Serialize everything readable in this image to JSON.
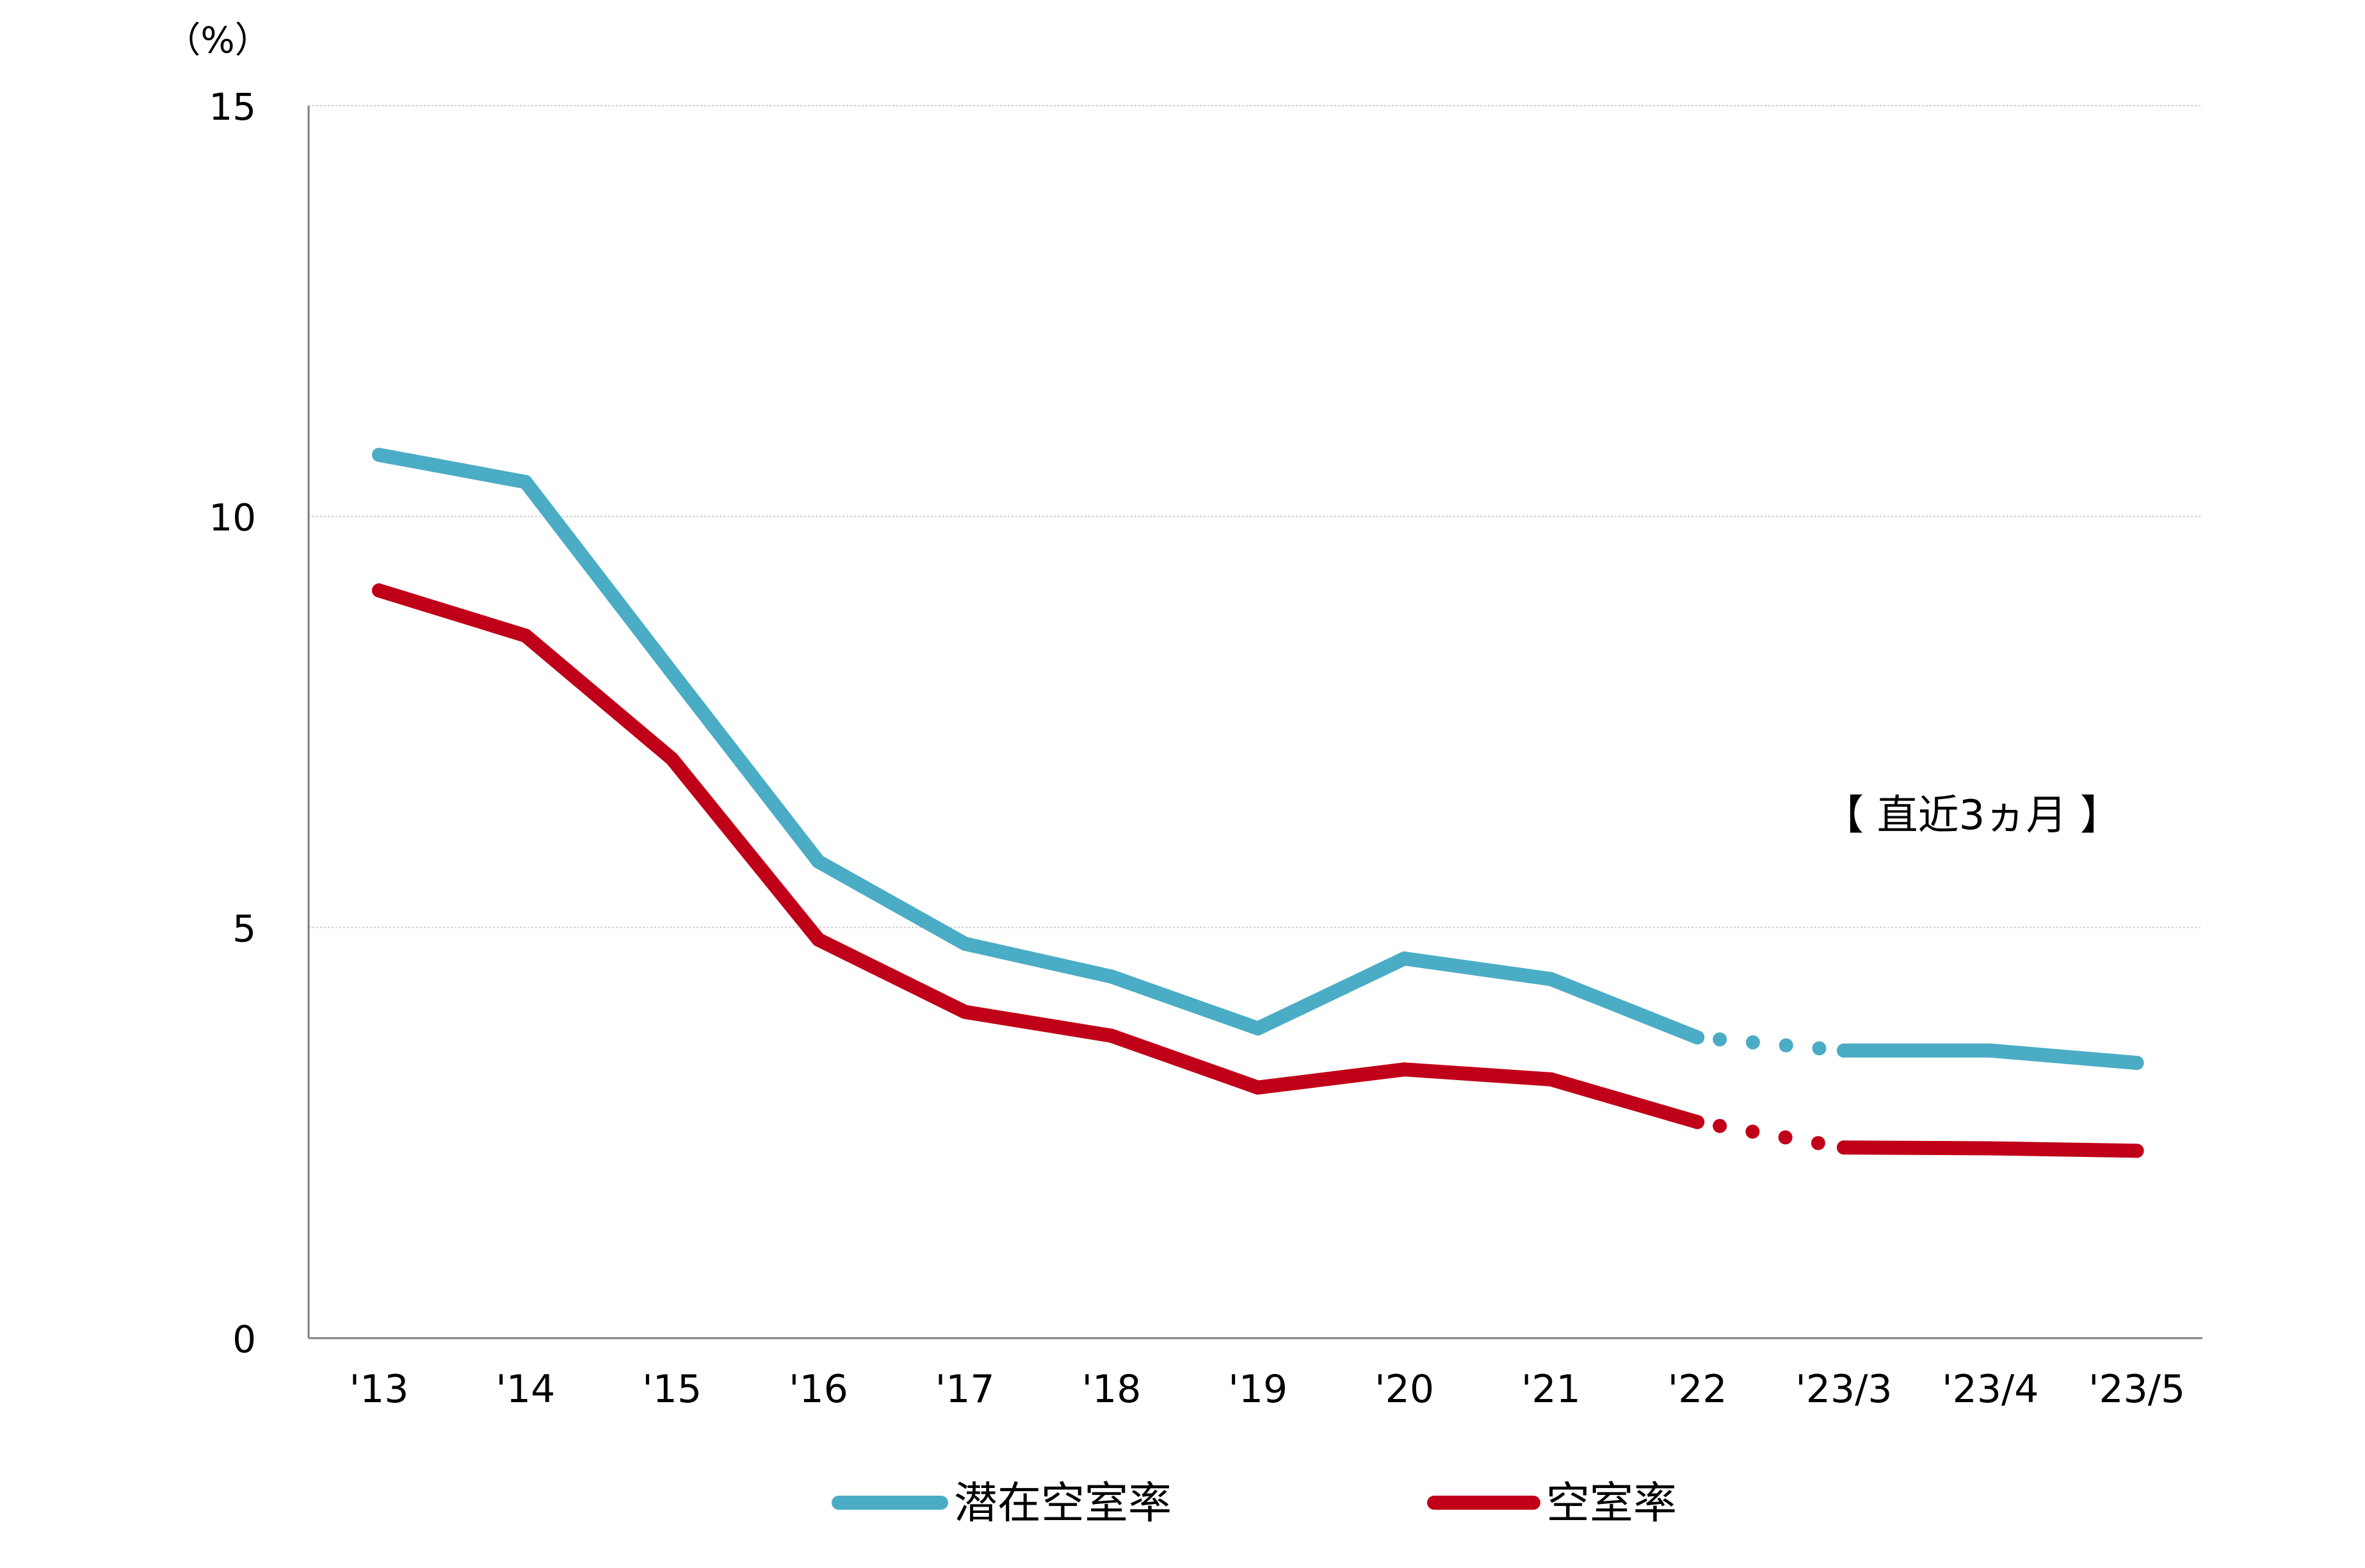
{
  "chart_data": {
    "type": "line",
    "y_unit": "（%）",
    "ylim": [
      0,
      15
    ],
    "yticks": [
      "0",
      "5",
      "10",
      "15"
    ],
    "grid": true,
    "categories": [
      "'13",
      "'14",
      "'15",
      "'16",
      "'17",
      "'18",
      "'19",
      "'20",
      "'21",
      "'22",
      "'23/3",
      "'23/4",
      "'23/5"
    ],
    "annotation": "【 直近3ヵ月 】",
    "legend_position": "bottom",
    "series": [
      {
        "name": "潜在空室率",
        "color": "#4BACC6",
        "values": [
          10.75,
          10.42,
          8.1,
          5.8,
          4.8,
          4.4,
          3.77,
          4.62,
          4.37,
          3.66,
          3.5,
          3.5,
          3.35
        ]
      },
      {
        "name": "空室率",
        "color": "#C00018",
        "values": [
          9.1,
          8.55,
          7.05,
          4.85,
          3.97,
          3.68,
          3.05,
          3.27,
          3.15,
          2.63,
          2.32,
          2.31,
          2.28
        ]
      }
    ]
  }
}
